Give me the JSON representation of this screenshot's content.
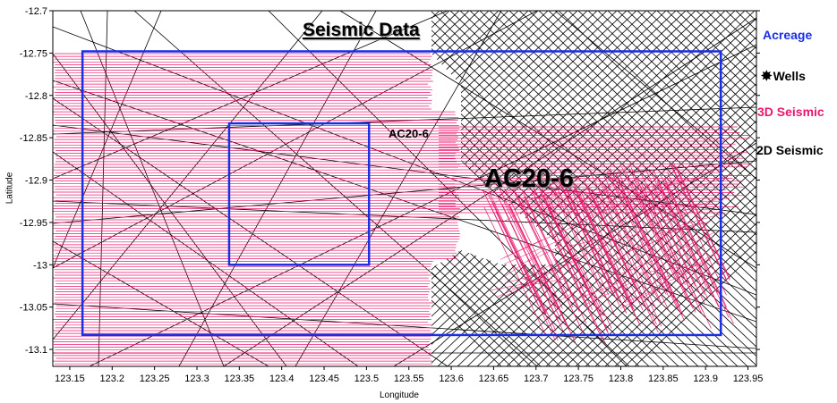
{
  "title": "Seismic Data",
  "block_label": "AC20-6",
  "inner_label": "AC20-6",
  "axes": {
    "xlabel": "Longitude",
    "ylabel": "Latitude",
    "xlim": [
      123.13,
      123.96
    ],
    "ylim": [
      -13.12,
      -12.7
    ],
    "xticks": [
      "123.15",
      "123.2",
      "123.25",
      "123.3",
      "123.35",
      "123.4",
      "123.45",
      "123.5",
      "123.55",
      "123.6",
      "123.65",
      "123.7",
      "123.75",
      "123.8",
      "123.85",
      "123.9",
      "123.95"
    ],
    "yticks": [
      "-12.7",
      "-12.75",
      "-12.8",
      "-12.85",
      "-12.9",
      "-12.95",
      "-13",
      "-13.05",
      "-13.1"
    ]
  },
  "legend": {
    "acreage": "Acreage",
    "wells": "Wells",
    "seismic_3d": "3D Seismic",
    "seismic_2d": "2D Seismic"
  },
  "colors": {
    "acreage": "#1a2ee6",
    "seismic_3d": "#e8186e",
    "seismic_2d": "#000000"
  },
  "acreage_polygons": [
    {
      "lon": [
        123.165,
        123.918
      ],
      "lat": [
        -13.083,
        -12.748
      ]
    },
    {
      "lon": [
        123.338,
        123.503
      ],
      "lat": [
        -13.0,
        -12.833
      ]
    }
  ]
}
